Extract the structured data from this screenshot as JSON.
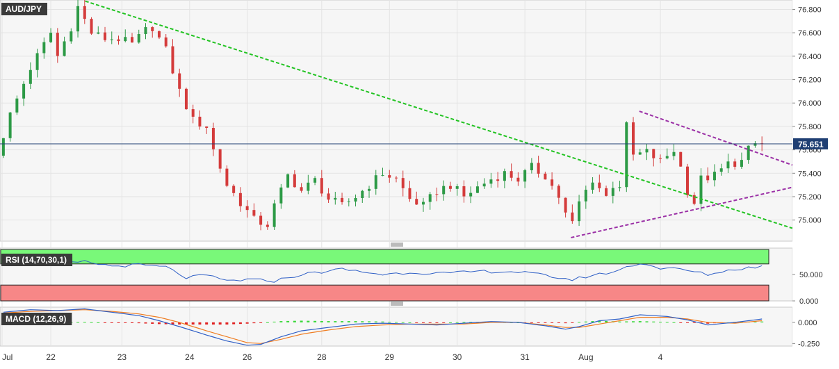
{
  "chart_data": [
    {
      "panel": "price",
      "type": "candlestick",
      "title": "AUD/JPY",
      "last_price": "75.651",
      "y_ticks": [
        "76.800",
        "76.600",
        "76.400",
        "76.200",
        "76.000",
        "75.800",
        "75.600",
        "75.400",
        "75.200",
        "75.000"
      ],
      "ylim": [
        74.82,
        76.88
      ],
      "x_labels": [
        "Jul",
        "22",
        "23",
        "24",
        "26",
        "28",
        "29",
        "30",
        "31",
        "Aug",
        "4"
      ],
      "path": [
        [
          0,
          75.55
        ],
        [
          2,
          75.9
        ],
        [
          5,
          76.3
        ],
        [
          8,
          76.6
        ],
        [
          9,
          76.4
        ],
        [
          11,
          76.65
        ],
        [
          12,
          76.82
        ],
        [
          14,
          76.6
        ],
        [
          16,
          76.55
        ],
        [
          18,
          76.55
        ],
        [
          20,
          76.5
        ],
        [
          22,
          76.62
        ],
        [
          23,
          76.65
        ],
        [
          25,
          76.45
        ],
        [
          27,
          76.1
        ],
        [
          29,
          75.85
        ],
        [
          31,
          75.8
        ],
        [
          32,
          75.6
        ],
        [
          34,
          75.3
        ],
        [
          36,
          75.15
        ],
        [
          38,
          75.0
        ],
        [
          40,
          74.96
        ],
        [
          41,
          75.12
        ],
        [
          43,
          75.38
        ],
        [
          45,
          75.25
        ],
        [
          47,
          75.34
        ],
        [
          49,
          75.18
        ],
        [
          51,
          75.12
        ],
        [
          53,
          75.2
        ],
        [
          55,
          75.3
        ],
        [
          57,
          75.4
        ],
        [
          59,
          75.35
        ],
        [
          61,
          75.18
        ],
        [
          63,
          75.12
        ],
        [
          65,
          75.25
        ],
        [
          67,
          75.3
        ],
        [
          69,
          75.2
        ],
        [
          71,
          75.28
        ],
        [
          73,
          75.35
        ],
        [
          75,
          75.4
        ],
        [
          77,
          75.35
        ],
        [
          79,
          75.45
        ],
        [
          81,
          75.38
        ],
        [
          83,
          75.2
        ],
        [
          84,
          75.05
        ],
        [
          85,
          74.97
        ],
        [
          86,
          75.15
        ],
        [
          88,
          75.35
        ],
        [
          90,
          75.2
        ],
        [
          91,
          75.3
        ],
        [
          92,
          75.3
        ],
        [
          93,
          75.8
        ],
        [
          94,
          75.55
        ],
        [
          96,
          75.58
        ],
        [
          98,
          75.5
        ],
        [
          100,
          75.6
        ],
        [
          101,
          75.45
        ],
        [
          102,
          75.25
        ],
        [
          103,
          75.15
        ],
        [
          104,
          75.35
        ],
        [
          106,
          75.38
        ],
        [
          108,
          75.48
        ],
        [
          110,
          75.5
        ],
        [
          111,
          75.6
        ],
        [
          112,
          75.65
        ]
      ],
      "trendlines": [
        {
          "name": "green-downtrend",
          "color": "#22c322",
          "points": [
            [
              12.1,
              76.87
            ],
            [
              116.5,
              74.93
            ]
          ]
        },
        {
          "name": "purple-upper",
          "color": "#9b30a6",
          "points": [
            [
              93.9,
              75.93
            ],
            [
              116.5,
              75.47
            ]
          ]
        },
        {
          "name": "purple-lower",
          "color": "#9b30a6",
          "points": [
            [
              83.8,
              74.85
            ],
            [
              116.5,
              75.28
            ]
          ]
        }
      ],
      "colors": {
        "up": "#2d9a46",
        "down": "#d43b3b",
        "price_line": "#1f3f73"
      }
    },
    {
      "panel": "rsi",
      "type": "line",
      "title": "RSI (14,70,30,1)",
      "y_ticks": [
        "50.000",
        "0.000"
      ],
      "ylim": [
        0,
        100
      ],
      "overbought": 70,
      "oversold": 30,
      "path": [
        [
          0,
          70
        ],
        [
          4,
          72
        ],
        [
          8,
          70
        ],
        [
          12,
          74
        ],
        [
          16,
          66
        ],
        [
          20,
          68
        ],
        [
          24,
          64
        ],
        [
          27,
          44
        ],
        [
          30,
          48
        ],
        [
          33,
          38
        ],
        [
          36,
          40
        ],
        [
          40,
          38
        ],
        [
          44,
          50
        ],
        [
          50,
          60
        ],
        [
          56,
          50
        ],
        [
          60,
          54
        ],
        [
          66,
          52
        ],
        [
          70,
          56
        ],
        [
          76,
          55
        ],
        [
          80,
          48
        ],
        [
          84,
          40
        ],
        [
          86,
          46
        ],
        [
          90,
          55
        ],
        [
          94,
          72
        ],
        [
          97,
          62
        ],
        [
          100,
          60
        ],
        [
          104,
          50
        ],
        [
          108,
          60
        ],
        [
          112,
          66
        ]
      ],
      "colors": {
        "line": "#2f5fc6",
        "overbought_zone": "#79f879",
        "oversold_zone": "#f78787"
      }
    },
    {
      "panel": "macd",
      "type": "line+histogram",
      "title": "MACD (12,26,9)",
      "y_ticks": [
        "0.000",
        "-0.250"
      ],
      "ylim": [
        -0.28,
        0.18
      ],
      "macd": [
        [
          0,
          0.12
        ],
        [
          4,
          0.15
        ],
        [
          8,
          0.14
        ],
        [
          12,
          0.16
        ],
        [
          16,
          0.12
        ],
        [
          20,
          0.08
        ],
        [
          23,
          0.02
        ],
        [
          26,
          -0.05
        ],
        [
          30,
          -0.15
        ],
        [
          33,
          -0.22
        ],
        [
          36,
          -0.27
        ],
        [
          38,
          -0.26
        ],
        [
          41,
          -0.17
        ],
        [
          44,
          -0.1
        ],
        [
          48,
          -0.06
        ],
        [
          52,
          -0.02
        ],
        [
          56,
          -0.01
        ],
        [
          60,
          -0.02
        ],
        [
          64,
          -0.03
        ],
        [
          68,
          -0.01
        ],
        [
          72,
          0.01
        ],
        [
          76,
          0.0
        ],
        [
          80,
          -0.04
        ],
        [
          83,
          -0.08
        ],
        [
          85,
          -0.05
        ],
        [
          88,
          0.02
        ],
        [
          91,
          0.04
        ],
        [
          94,
          0.09
        ],
        [
          98,
          0.07
        ],
        [
          101,
          0.03
        ],
        [
          104,
          -0.03
        ],
        [
          108,
          0.0
        ],
        [
          112,
          0.04
        ]
      ],
      "signal": [
        [
          0,
          0.11
        ],
        [
          4,
          0.13
        ],
        [
          8,
          0.14
        ],
        [
          12,
          0.15
        ],
        [
          16,
          0.13
        ],
        [
          20,
          0.1
        ],
        [
          23,
          0.06
        ],
        [
          26,
          0.0
        ],
        [
          30,
          -0.1
        ],
        [
          33,
          -0.17
        ],
        [
          36,
          -0.24
        ],
        [
          38,
          -0.25
        ],
        [
          41,
          -0.2
        ],
        [
          44,
          -0.14
        ],
        [
          48,
          -0.09
        ],
        [
          52,
          -0.05
        ],
        [
          56,
          -0.03
        ],
        [
          60,
          -0.02
        ],
        [
          64,
          -0.02
        ],
        [
          68,
          -0.02
        ],
        [
          72,
          0.0
        ],
        [
          76,
          0.0
        ],
        [
          80,
          -0.03
        ],
        [
          83,
          -0.06
        ],
        [
          85,
          -0.06
        ],
        [
          88,
          -0.02
        ],
        [
          91,
          0.02
        ],
        [
          94,
          0.06
        ],
        [
          98,
          0.06
        ],
        [
          101,
          0.04
        ],
        [
          104,
          0.0
        ],
        [
          108,
          -0.01
        ],
        [
          112,
          0.02
        ]
      ],
      "colors": {
        "macd": "#2f5fc6",
        "signal": "#ef7d22",
        "hist_up": "#39d839",
        "hist_down": "#e02020"
      }
    }
  ]
}
